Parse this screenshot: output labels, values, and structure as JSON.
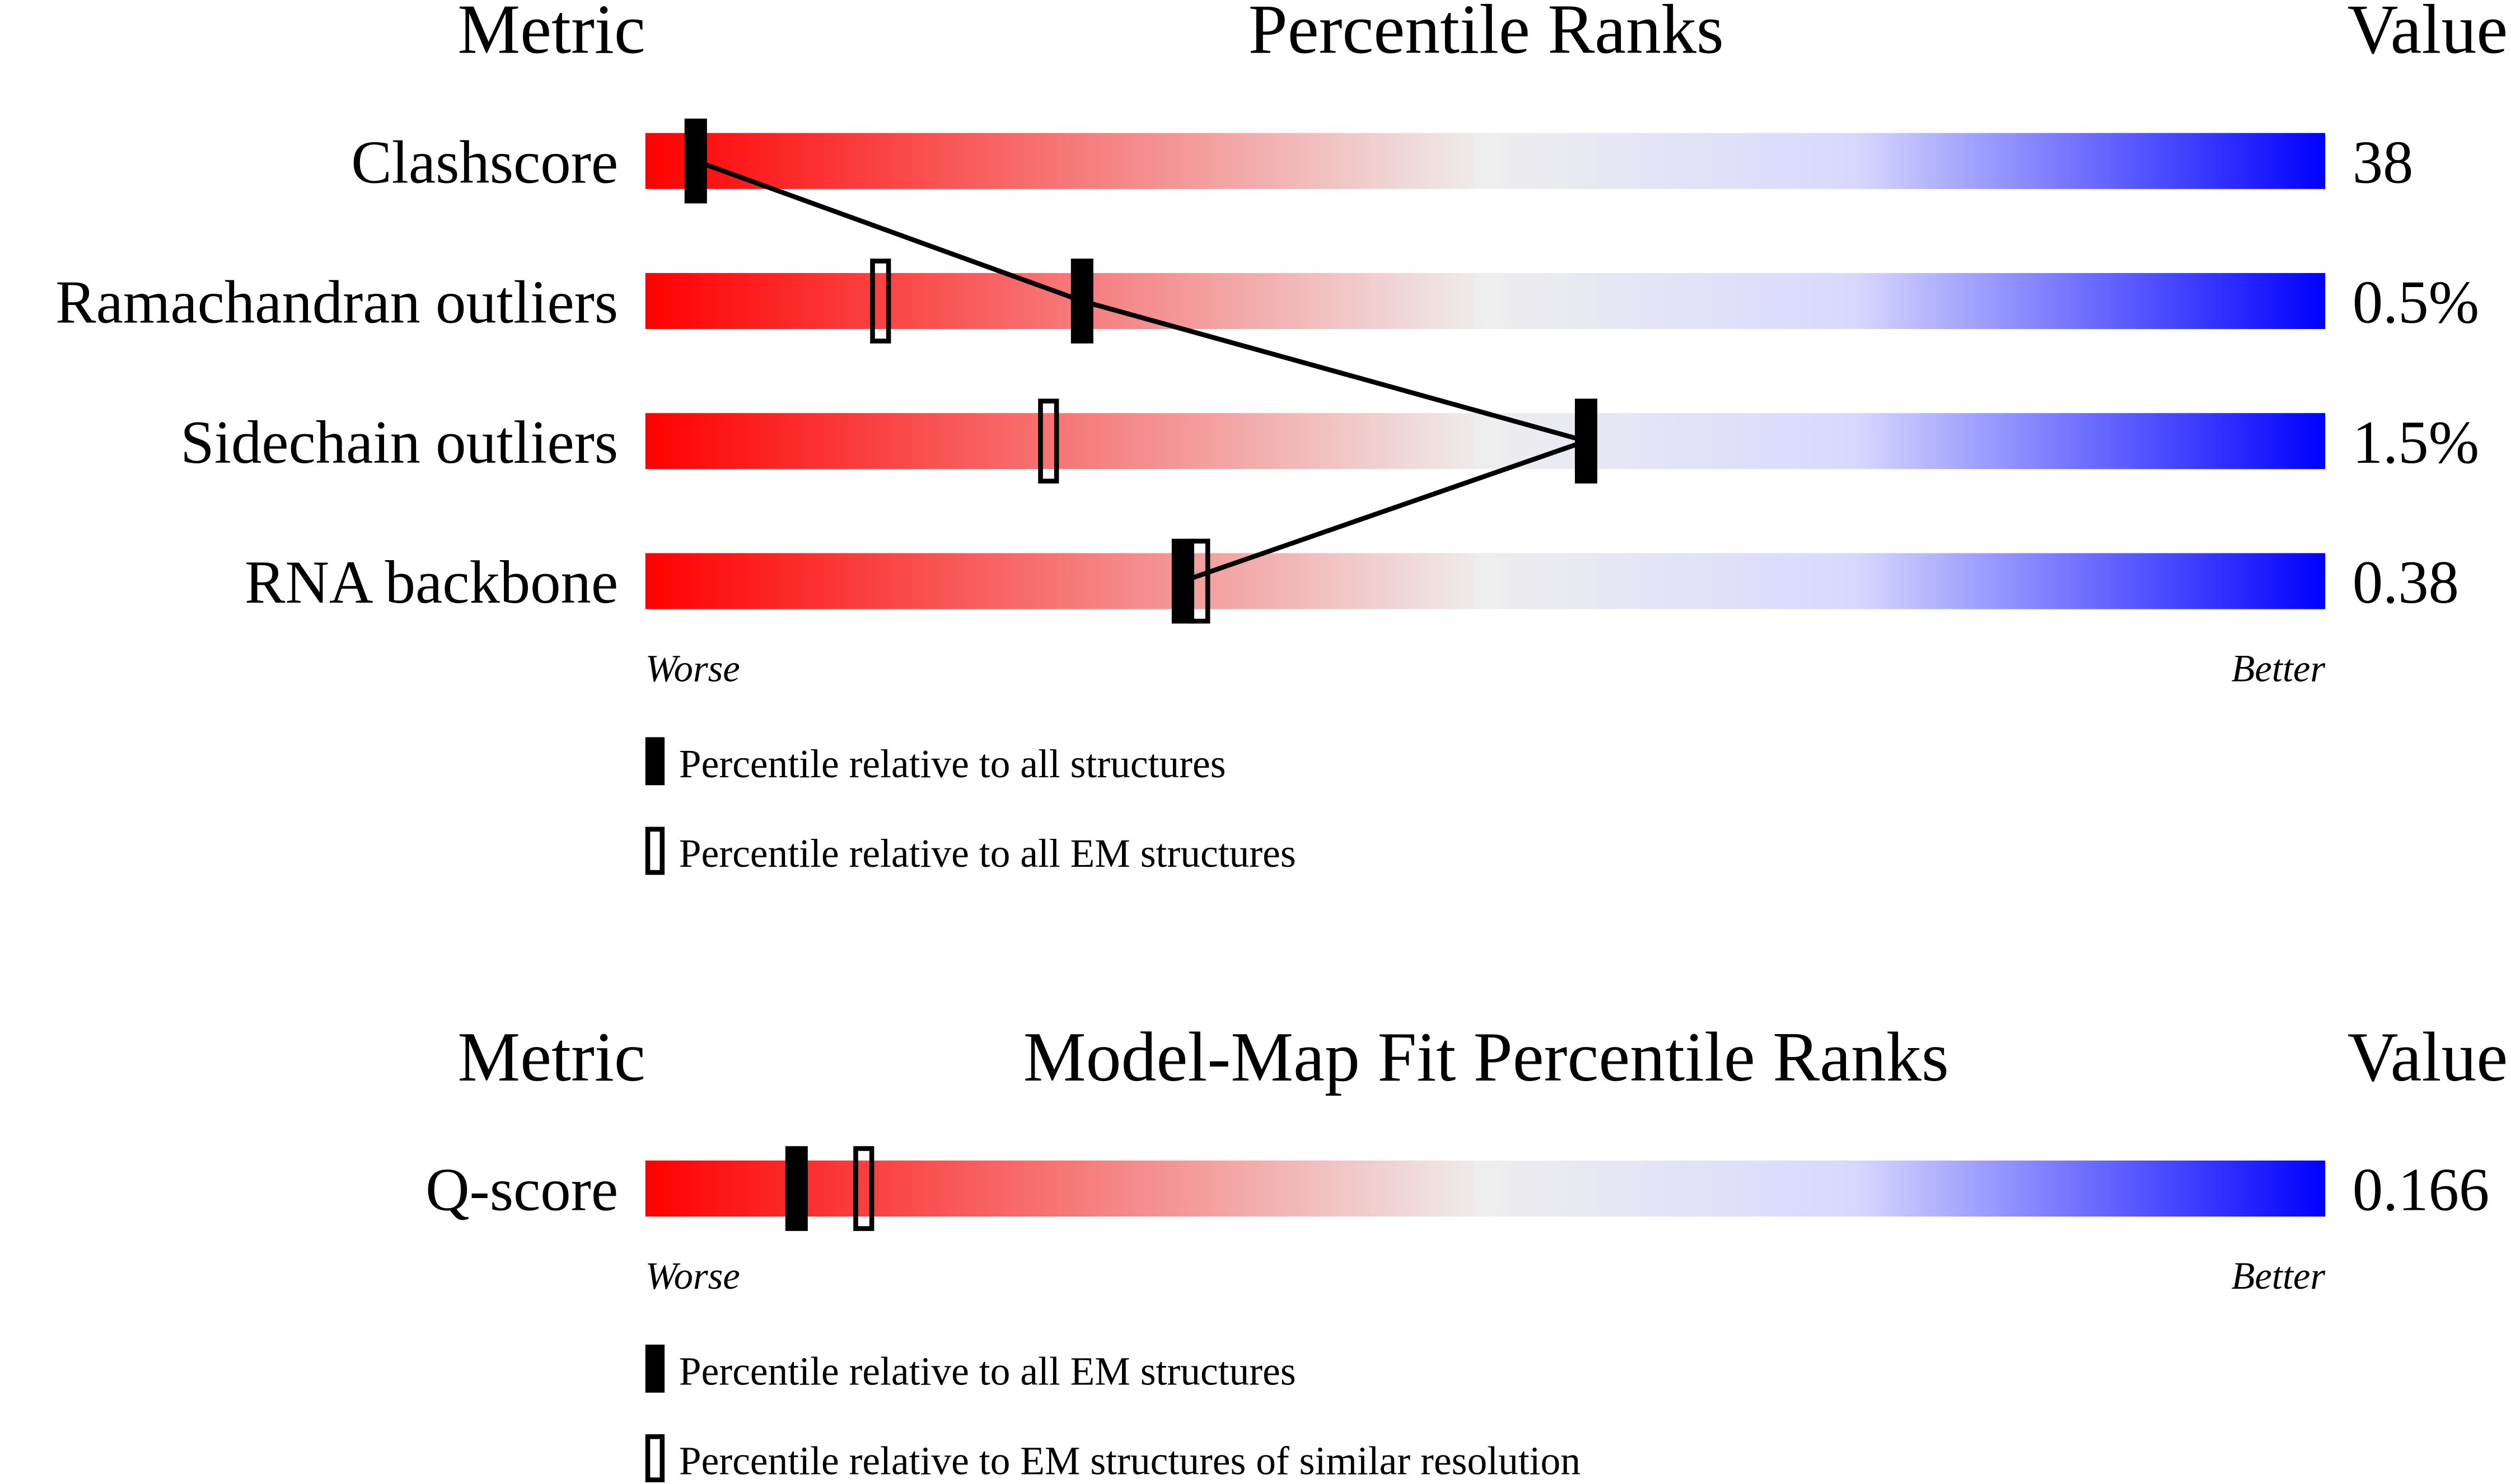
{
  "chart_data": [
    {
      "type": "slider",
      "headers": {
        "metric": "Metric",
        "title": "Percentile Ranks",
        "value": "Value"
      },
      "axis": {
        "worse": "Worse",
        "better": "Better",
        "range": [
          0,
          100
        ]
      },
      "gradient_colors": [
        "#ff0000",
        "#eeeeee",
        "#0000ff"
      ],
      "metrics": [
        {
          "name": "Clashscore",
          "value": "38",
          "percentile_all": 3,
          "percentile_em": null
        },
        {
          "name": "Ramachandran outliers",
          "value": "0.5%",
          "percentile_all": 26,
          "percentile_em": 14
        },
        {
          "name": "Sidechain outliers",
          "value": "1.5%",
          "percentile_all": 56,
          "percentile_em": 24
        },
        {
          "name": "RNA backbone",
          "value": "0.38",
          "percentile_all": 32,
          "percentile_em": 33
        }
      ],
      "legend": {
        "filled": "Percentile relative to all structures",
        "open": "Percentile relative to all EM structures"
      },
      "connect_filled_markers": true
    },
    {
      "type": "slider",
      "headers": {
        "metric": "Metric",
        "title": "Model-Map Fit Percentile Ranks",
        "value": "Value"
      },
      "axis": {
        "worse": "Worse",
        "better": "Better",
        "range": [
          0,
          100
        ]
      },
      "gradient_colors": [
        "#ff0000",
        "#eeeeee",
        "#0000ff"
      ],
      "metrics": [
        {
          "name": "Q-score",
          "value": "0.166",
          "percentile_all": 9,
          "percentile_em": 13
        }
      ],
      "legend": {
        "filled": "Percentile relative to all EM structures",
        "open": "Percentile relative to EM structures of similar resolution"
      },
      "connect_filled_markers": false
    }
  ]
}
